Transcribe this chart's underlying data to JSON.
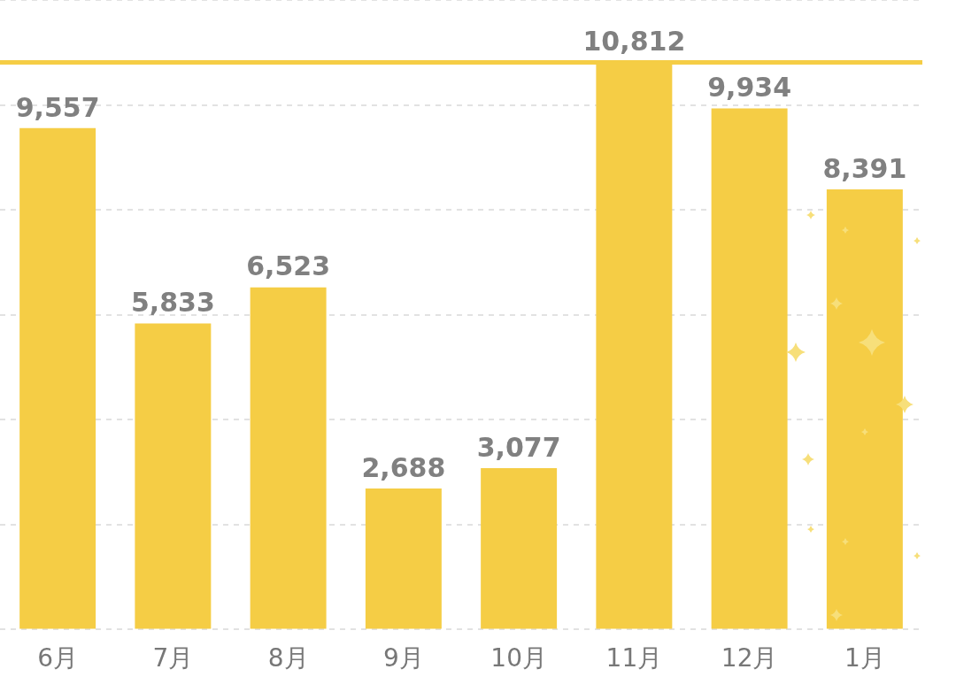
{
  "chart_data": {
    "type": "bar",
    "categories": [
      "6月",
      "7月",
      "8月",
      "9月",
      "10月",
      "11月",
      "12月",
      "1月"
    ],
    "values": [
      9557,
      5833,
      6523,
      2688,
      3077,
      10812,
      9934,
      8391
    ],
    "color": "#f5cd45",
    "value_labels": [
      "9,557",
      "5,833",
      "6,523",
      "2,688",
      "3,077",
      "10,812",
      "9,934",
      "8,391"
    ],
    "tick_labels": "x",
    "grid": "y",
    "legend": false,
    "ref_lines": [
      {
        "axis": "y",
        "value": 10812,
        "color": "#f5cd45",
        "line_style": "solid"
      }
    ]
  }
}
